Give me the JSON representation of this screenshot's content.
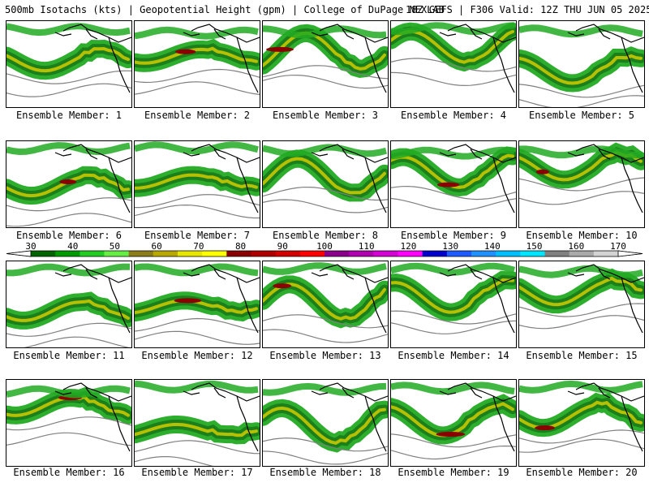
{
  "header": {
    "left": "500mb Isotachs (kts) | Geopotential Height (gpm) | College of DuPage NEXLAB",
    "right": "18Z GEFS | F306 Valid: 12Z THU JUN 05 2025"
  },
  "caption_prefix": "Ensemble Member:",
  "members": [
    {
      "label": "Ensemble Member: 1"
    },
    {
      "label": "Ensemble Member: 2"
    },
    {
      "label": "Ensemble Member: 3"
    },
    {
      "label": "Ensemble Member: 4"
    },
    {
      "label": "Ensemble Member: 5"
    },
    {
      "label": "Ensemble Member: 6"
    },
    {
      "label": "Ensemble Member: 7"
    },
    {
      "label": "Ensemble Member: 8"
    },
    {
      "label": "Ensemble Member: 9"
    },
    {
      "label": "Ensemble Member: 10"
    },
    {
      "label": "Ensemble Member: 11"
    },
    {
      "label": "Ensemble Member: 12"
    },
    {
      "label": "Ensemble Member: 13"
    },
    {
      "label": "Ensemble Member: 14"
    },
    {
      "label": "Ensemble Member: 15"
    },
    {
      "label": "Ensemble Member: 16"
    },
    {
      "label": "Ensemble Member: 17"
    },
    {
      "label": "Ensemble Member: 18"
    },
    {
      "label": "Ensemble Member: 19"
    },
    {
      "label": "Ensemble Member: 20"
    }
  ],
  "colorbar": {
    "labels": [
      "30",
      "40",
      "50",
      "60",
      "70",
      "80",
      "90",
      "100",
      "110",
      "120",
      "130",
      "140",
      "150",
      "160",
      "170"
    ],
    "colors": [
      "#006400",
      "#009a00",
      "#22cc22",
      "#66ee44",
      "#8b7d1a",
      "#b8a800",
      "#e6e600",
      "#ffff00",
      "#8b0000",
      "#b00000",
      "#d40000",
      "#ff0000",
      "#8b008b",
      "#b000b0",
      "#d400d4",
      "#ff00ff",
      "#0000cd",
      "#1e5aff",
      "#1e90ff",
      "#00bfff",
      "#00e5ff",
      "#808080",
      "#a9a9a9",
      "#d3d3d3"
    ]
  },
  "colors": {
    "jet_weak": "#22aa22",
    "jet_mid": "#1a7a1a",
    "jet_core": "#c8c800",
    "jet_max": "#8b0000",
    "height_contour": "#808080",
    "coast": "#000000"
  }
}
